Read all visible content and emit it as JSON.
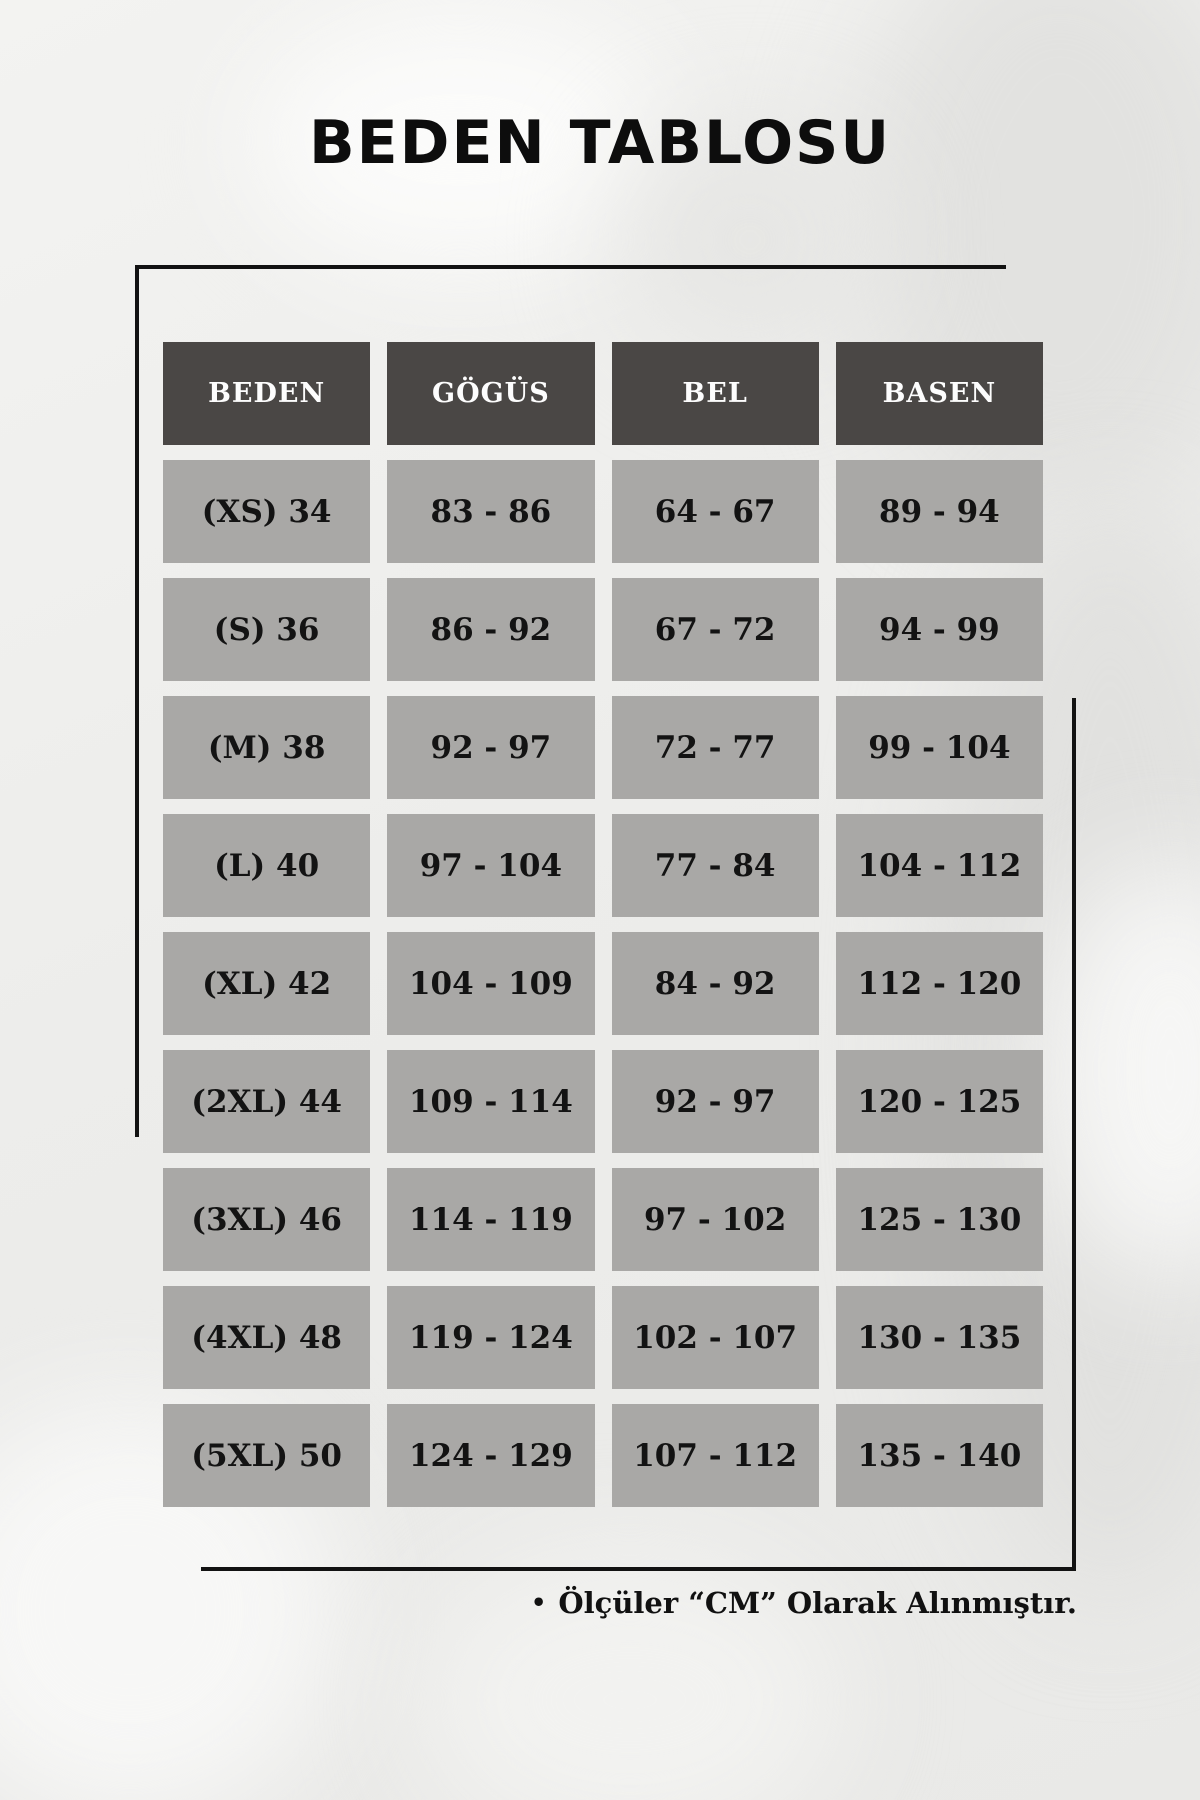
{
  "page": {
    "title": "BEDEN TABLOSU",
    "footnote_bullet": "•",
    "footnote": "Ölçüler “CM” Olarak Alınmıştır."
  },
  "colors": {
    "header_bg": "#4a4745",
    "cell_bg": "#a9a8a6",
    "header_text": "#fdfdfd",
    "cell_text": "#131313",
    "line": "#121212",
    "title_text": "#0d0d0d"
  },
  "size_chart": {
    "type": "table",
    "unit": "CM",
    "columns": [
      "BEDEN",
      "GÖGÜS",
      "BEL",
      "BASEN"
    ],
    "rows": [
      [
        "(XS) 34",
        "83 - 86",
        "64 - 67",
        "89 - 94"
      ],
      [
        "(S) 36",
        "86 - 92",
        "67 - 72",
        "94 - 99"
      ],
      [
        "(M) 38",
        "92 - 97",
        "72 - 77",
        "99 - 104"
      ],
      [
        "(L) 40",
        "97 - 104",
        "77 - 84",
        "104 - 112"
      ],
      [
        "(XL) 42",
        "104 - 109",
        "84 - 92",
        "112 - 120"
      ],
      [
        "(2XL) 44",
        "109 - 114",
        "92 - 97",
        "120 - 125"
      ],
      [
        "(3XL) 46",
        "114 - 119",
        "97 - 102",
        "125 - 130"
      ],
      [
        "(4XL) 48",
        "119 - 124",
        "102 - 107",
        "130 - 135"
      ],
      [
        "(5XL) 50",
        "124 - 129",
        "107 - 112",
        "135 - 140"
      ]
    ]
  }
}
